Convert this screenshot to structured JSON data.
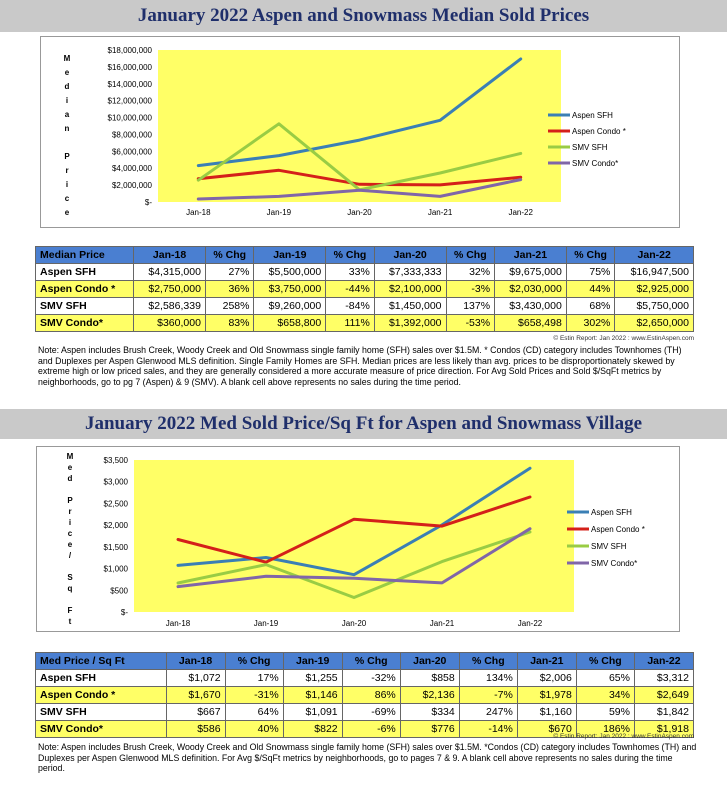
{
  "section1": {
    "title": "January 2022 Aspen and Snowmass Median Sold Prices",
    "table_headers": [
      "Median Price",
      "Jan-18",
      "% Chg",
      "Jan-19",
      "% Chg",
      "Jan-20",
      "% Chg",
      "Jan-21",
      "% Chg",
      "Jan-22"
    ],
    "table_rows": [
      [
        "Aspen SFH",
        "$4,315,000",
        "27%",
        "$5,500,000",
        "33%",
        "$7,333,333",
        "32%",
        "$9,675,000",
        "75%",
        "$16,947,500"
      ],
      [
        "Aspen Condo *",
        "$2,750,000",
        "36%",
        "$3,750,000",
        "-44%",
        "$2,100,000",
        "-3%",
        "$2,030,000",
        "44%",
        "$2,925,000"
      ],
      [
        "SMV SFH",
        "$2,586,339",
        "258%",
        "$9,260,000",
        "-84%",
        "$1,450,000",
        "137%",
        "$3,430,000",
        "68%",
        "$5,750,000"
      ],
      [
        "SMV Condo*",
        "$360,000",
        "83%",
        "$658,800",
        "111%",
        "$1,392,000",
        "-53%",
        "$658,498",
        "302%",
        "$2,650,000"
      ]
    ],
    "credit": "© Estin Report: Jan 2022 : www.EstinAspen.com",
    "note": "Note: Aspen includes Brush Creek, Woody Creek and Old Snowmass single family home (SFH) sales over $1.5M.  * Condos (CD) category includes Townhomes (TH) and Duplexes per Aspen Glenwood MLS definition. Single Family Homes are SFH. Median prices are less likely than avg. prices to be disproportionately skewed by extreme high or low priced sales, and they are generally considered a more accurate measure of price direction. For Avg Sold Prices and Sold $/SqFt metrics by neighborhoods, go to pg 7 (Aspen) & 9 (SMV). A blank cell above represents no sales during the time period."
  },
  "section2": {
    "title": "January 2022 Med Sold Price/Sq Ft for Aspen and Snowmass Village",
    "table_headers": [
      "Med Price / Sq Ft",
      "Jan-18",
      "% Chg",
      "Jan-19",
      "% Chg",
      "Jan-20",
      "% Chg",
      "Jan-21",
      "% Chg",
      "Jan-22"
    ],
    "table_rows": [
      [
        "Aspen SFH",
        "$1,072",
        "17%",
        "$1,255",
        "-32%",
        "$858",
        "134%",
        "$2,006",
        "65%",
        "$3,312"
      ],
      [
        "Aspen Condo *",
        "$1,670",
        "-31%",
        "$1,146",
        "86%",
        "$2,136",
        "-7%",
        "$1,978",
        "34%",
        "$2,649"
      ],
      [
        "SMV SFH",
        "$667",
        "64%",
        "$1,091",
        "-69%",
        "$334",
        "247%",
        "$1,160",
        "59%",
        "$1,842"
      ],
      [
        "SMV Condo*",
        "$586",
        "40%",
        "$822",
        "-6%",
        "$776",
        "-14%",
        "$670",
        "186%",
        "$1,918"
      ]
    ],
    "credit": "© Estin Report: Jan 2022 : www.EstinAspen.com",
    "note": "Note: Aspen includes Brush Creek, Woody Creek and Old Snowmass single family home (SFH) sales over $1.5M. *Condos (CD) category includes Townhomes (TH) and Duplexes per Aspen Glenwood MLS definition. For Avg $/SqFt metrics by neighborhoods, go to pages 7 & 9. A blank cell above represents no sales during the time period."
  },
  "chart_data": [
    {
      "type": "line",
      "title": "January 2022 Aspen and Snowmass Median Sold Prices",
      "ylabel_letters": [
        "M",
        "e",
        "d",
        "i",
        "a",
        "n",
        "",
        "P",
        "r",
        "i",
        "c",
        "e"
      ],
      "categories": [
        "Jan-18",
        "Jan-19",
        "Jan-20",
        "Jan-21",
        "Jan-22"
      ],
      "ylim": [
        0,
        18000000
      ],
      "yticks": [
        0,
        2000000,
        4000000,
        6000000,
        8000000,
        10000000,
        12000000,
        14000000,
        16000000,
        18000000
      ],
      "ytick_labels": [
        "$-",
        "$2,000,000",
        "$4,000,000",
        "$6,000,000",
        "$8,000,000",
        "$10,000,000",
        "$12,000,000",
        "$14,000,000",
        "$16,000,000",
        "$18,000,000"
      ],
      "legend_position": "right",
      "series": [
        {
          "name": "Aspen SFH",
          "color": "#3a7fb5",
          "values": [
            4315000,
            5500000,
            7333333,
            9675000,
            16947500
          ]
        },
        {
          "name": "Aspen Condo *",
          "color": "#d4201a",
          "values": [
            2750000,
            3750000,
            2100000,
            2030000,
            2925000
          ]
        },
        {
          "name": "SMV SFH",
          "color": "#99cc44",
          "values": [
            2586339,
            9260000,
            1450000,
            3430000,
            5750000
          ]
        },
        {
          "name": "SMV Condo*",
          "color": "#8066a8",
          "values": [
            360000,
            658800,
            1392000,
            658498,
            2650000
          ]
        }
      ]
    },
    {
      "type": "line",
      "title": "January 2022 Med Sold Price/Sq Ft for Aspen and Snowmass Village",
      "ylabel_letters": [
        "M",
        "e",
        "d",
        "",
        "P",
        "r",
        "i",
        "c",
        "e",
        "/",
        "",
        "S",
        "q",
        "",
        "F",
        "t"
      ],
      "categories": [
        "Jan-18",
        "Jan-19",
        "Jan-20",
        "Jan-21",
        "Jan-22"
      ],
      "ylim": [
        0,
        3500
      ],
      "yticks": [
        0,
        500,
        1000,
        1500,
        2000,
        2500,
        3000,
        3500
      ],
      "ytick_labels": [
        "$-",
        "$500",
        "$1,000",
        "$1,500",
        "$2,000",
        "$2,500",
        "$3,000",
        "$3,500"
      ],
      "legend_position": "right",
      "series": [
        {
          "name": "Aspen SFH",
          "color": "#3a7fb5",
          "values": [
            1072,
            1255,
            858,
            2006,
            3312
          ]
        },
        {
          "name": "Aspen Condo *",
          "color": "#d4201a",
          "values": [
            1670,
            1146,
            2136,
            1978,
            2649
          ]
        },
        {
          "name": "SMV SFH",
          "color": "#99cc44",
          "values": [
            667,
            1091,
            334,
            1160,
            1842
          ]
        },
        {
          "name": "SMV Condo*",
          "color": "#8066a8",
          "values": [
            586,
            822,
            776,
            670,
            1918
          ]
        }
      ]
    }
  ]
}
